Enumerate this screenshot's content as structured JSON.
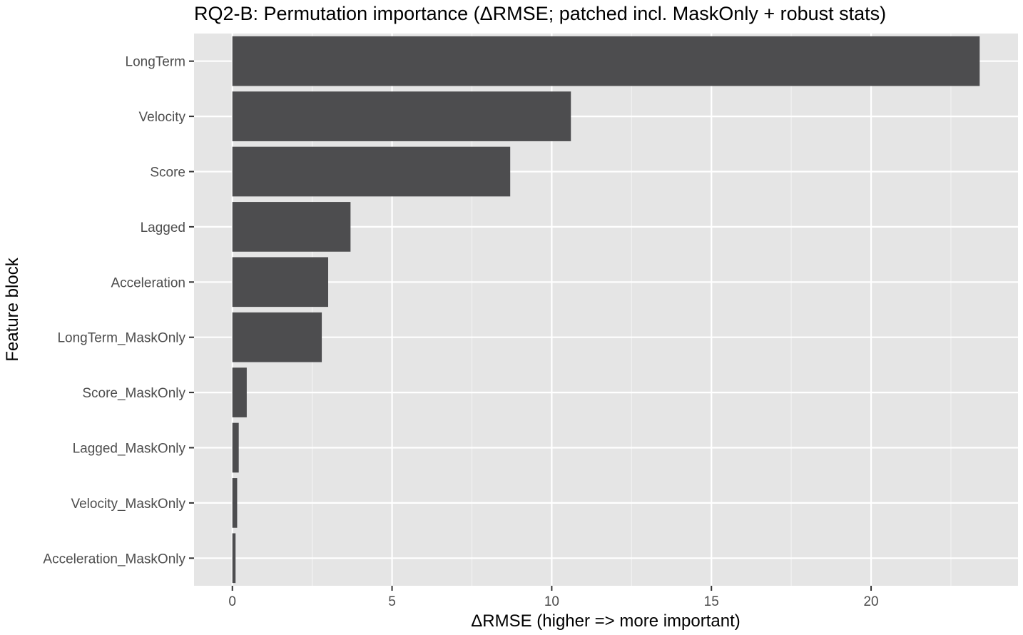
{
  "chart_data": {
    "type": "bar",
    "orientation": "horizontal",
    "title": "RQ2-B: Permutation importance (ΔRMSE; patched incl. MaskOnly + robust stats)",
    "xlabel": "ΔRMSE (higher => more important)",
    "ylabel": "Feature block",
    "categories": [
      "LongTerm",
      "Velocity",
      "Score",
      "Lagged",
      "Acceleration",
      "LongTerm_MaskOnly",
      "Score_MaskOnly",
      "Lagged_MaskOnly",
      "Velocity_MaskOnly",
      "Acceleration_MaskOnly"
    ],
    "values": [
      23.4,
      10.6,
      8.7,
      3.7,
      3.0,
      2.8,
      0.45,
      0.2,
      0.15,
      0.1
    ],
    "xlim": [
      -1.2,
      24.6
    ],
    "xticks": [
      0,
      5,
      10,
      15,
      20
    ],
    "x_tick_labels": [
      "0",
      "5",
      "10",
      "15",
      "20"
    ],
    "grid": true,
    "colors": {
      "bar": "#4d4d4f",
      "panel_background": "#e5e5e5",
      "grid_major": "#ffffff",
      "grid_minor": "#f2f2f2",
      "tick_label": "#4d4d4d"
    }
  }
}
